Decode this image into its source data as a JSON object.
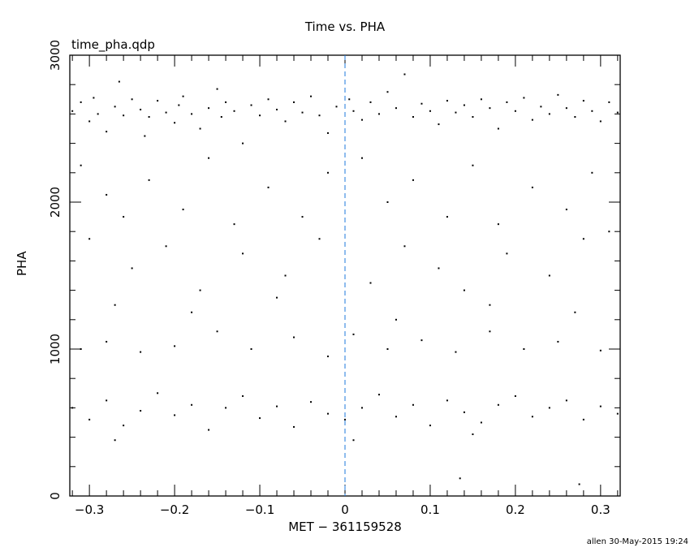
{
  "chart_data": {
    "type": "scatter",
    "title": "Time vs. PHA",
    "subtitle": "time_pha.qdp",
    "xlabel": "MET − 361159528",
    "ylabel": "PHA",
    "xlim": [
      -0.323,
      0.323
    ],
    "ylim": [
      0,
      3000
    ],
    "xticks": [
      -0.3,
      -0.2,
      -0.1,
      0,
      0.1,
      0.2,
      0.3
    ],
    "xtick_labels": [
      "−0.3",
      "−0.2",
      "−0.1",
      "0",
      "0.1",
      "0.2",
      "0.3"
    ],
    "yticks": [
      0,
      1000,
      2000,
      3000
    ],
    "ytick_labels": [
      "0",
      "1000",
      "2000",
      "3000"
    ],
    "grid": false,
    "reference_line": {
      "x": 0,
      "style": "dashed",
      "color": "#1e78dc"
    },
    "marker_color": "#000000",
    "points": [
      [
        -0.32,
        2620
      ],
      [
        -0.31,
        2680
      ],
      [
        -0.3,
        2550
      ],
      [
        -0.295,
        2710
      ],
      [
        -0.29,
        2600
      ],
      [
        -0.28,
        2480
      ],
      [
        -0.27,
        2650
      ],
      [
        -0.265,
        2820
      ],
      [
        -0.26,
        2590
      ],
      [
        -0.25,
        2700
      ],
      [
        -0.24,
        2630
      ],
      [
        -0.235,
        2450
      ],
      [
        -0.23,
        2580
      ],
      [
        -0.22,
        2690
      ],
      [
        -0.21,
        2610
      ],
      [
        -0.2,
        2540
      ],
      [
        -0.195,
        2660
      ],
      [
        -0.19,
        2720
      ],
      [
        -0.18,
        2600
      ],
      [
        -0.17,
        2500
      ],
      [
        -0.16,
        2640
      ],
      [
        -0.15,
        2770
      ],
      [
        -0.145,
        2580
      ],
      [
        -0.14,
        2680
      ],
      [
        -0.13,
        2620
      ],
      [
        -0.12,
        2400
      ],
      [
        -0.11,
        2660
      ],
      [
        -0.1,
        2590
      ],
      [
        -0.09,
        2700
      ],
      [
        -0.08,
        2630
      ],
      [
        -0.07,
        2550
      ],
      [
        -0.06,
        2680
      ],
      [
        -0.05,
        2610
      ],
      [
        -0.04,
        2720
      ],
      [
        -0.03,
        2590
      ],
      [
        -0.02,
        2470
      ],
      [
        -0.01,
        2650
      ],
      [
        0.005,
        2700
      ],
      [
        0.01,
        2620
      ],
      [
        0.02,
        2560
      ],
      [
        0.03,
        2680
      ],
      [
        0.04,
        2600
      ],
      [
        0.05,
        2750
      ],
      [
        0.06,
        2640
      ],
      [
        0.07,
        2870
      ],
      [
        0.08,
        2580
      ],
      [
        0.09,
        2670
      ],
      [
        0.1,
        2620
      ],
      [
        0.11,
        2530
      ],
      [
        0.12,
        2690
      ],
      [
        0.13,
        2610
      ],
      [
        0.14,
        2660
      ],
      [
        0.15,
        2580
      ],
      [
        0.16,
        2700
      ],
      [
        0.17,
        2640
      ],
      [
        0.18,
        2500
      ],
      [
        0.19,
        2680
      ],
      [
        0.2,
        2620
      ],
      [
        0.21,
        2710
      ],
      [
        0.22,
        2560
      ],
      [
        0.23,
        2650
      ],
      [
        0.24,
        2600
      ],
      [
        0.25,
        2730
      ],
      [
        0.26,
        2640
      ],
      [
        0.27,
        2580
      ],
      [
        0.28,
        2690
      ],
      [
        0.29,
        2620
      ],
      [
        0.3,
        2550
      ],
      [
        0.31,
        2680
      ],
      [
        0.32,
        2610
      ],
      [
        -0.31,
        2250
      ],
      [
        -0.28,
        2050
      ],
      [
        -0.26,
        1900
      ],
      [
        -0.23,
        2150
      ],
      [
        -0.19,
        1950
      ],
      [
        -0.16,
        2300
      ],
      [
        -0.13,
        1850
      ],
      [
        -0.09,
        2100
      ],
      [
        -0.05,
        1900
      ],
      [
        -0.02,
        2200
      ],
      [
        0.02,
        2300
      ],
      [
        0.05,
        2000
      ],
      [
        0.08,
        2150
      ],
      [
        0.12,
        1900
      ],
      [
        0.15,
        2250
      ],
      [
        0.18,
        1850
      ],
      [
        0.22,
        2100
      ],
      [
        0.26,
        1950
      ],
      [
        0.29,
        2200
      ],
      [
        0.31,
        1800
      ],
      [
        -0.3,
        1750
      ],
      [
        -0.25,
        1550
      ],
      [
        -0.21,
        1700
      ],
      [
        -0.17,
        1400
      ],
      [
        -0.12,
        1650
      ],
      [
        -0.07,
        1500
      ],
      [
        -0.03,
        1750
      ],
      [
        0.03,
        1450
      ],
      [
        0.07,
        1700
      ],
      [
        0.11,
        1550
      ],
      [
        0.14,
        1400
      ],
      [
        0.19,
        1650
      ],
      [
        0.24,
        1500
      ],
      [
        0.28,
        1750
      ],
      [
        -0.27,
        1300
      ],
      [
        -0.18,
        1250
      ],
      [
        -0.08,
        1350
      ],
      [
        0.06,
        1200
      ],
      [
        0.17,
        1300
      ],
      [
        0.27,
        1250
      ],
      [
        -0.31,
        1000
      ],
      [
        -0.28,
        1050
      ],
      [
        -0.24,
        980
      ],
      [
        -0.2,
        1020
      ],
      [
        -0.15,
        1120
      ],
      [
        -0.11,
        1000
      ],
      [
        -0.06,
        1080
      ],
      [
        -0.02,
        950
      ],
      [
        0.01,
        1100
      ],
      [
        0.05,
        1000
      ],
      [
        0.09,
        1060
      ],
      [
        0.13,
        980
      ],
      [
        0.17,
        1120
      ],
      [
        0.21,
        1000
      ],
      [
        0.25,
        1050
      ],
      [
        0.3,
        990
      ],
      [
        -0.32,
        600
      ],
      [
        -0.3,
        520
      ],
      [
        -0.28,
        650
      ],
      [
        -0.26,
        480
      ],
      [
        -0.24,
        580
      ],
      [
        -0.22,
        700
      ],
      [
        -0.2,
        550
      ],
      [
        -0.18,
        620
      ],
      [
        -0.16,
        450
      ],
      [
        -0.14,
        600
      ],
      [
        -0.12,
        680
      ],
      [
        -0.1,
        530
      ],
      [
        -0.08,
        610
      ],
      [
        -0.06,
        470
      ],
      [
        -0.04,
        640
      ],
      [
        -0.02,
        560
      ],
      [
        0.0,
        520
      ],
      [
        0.02,
        600
      ],
      [
        0.04,
        690
      ],
      [
        0.06,
        540
      ],
      [
        0.08,
        620
      ],
      [
        0.1,
        480
      ],
      [
        0.12,
        650
      ],
      [
        0.14,
        570
      ],
      [
        0.16,
        500
      ],
      [
        0.18,
        620
      ],
      [
        0.2,
        680
      ],
      [
        0.22,
        540
      ],
      [
        0.24,
        600
      ],
      [
        0.26,
        650
      ],
      [
        0.28,
        520
      ],
      [
        0.3,
        610
      ],
      [
        0.32,
        560
      ],
      [
        0.135,
        120
      ],
      [
        0.275,
        80
      ],
      [
        -0.27,
        380
      ],
      [
        0.01,
        380
      ],
      [
        0.15,
        420
      ]
    ]
  },
  "footer": {
    "stamp": "allen 30-May-2015 19:24"
  }
}
